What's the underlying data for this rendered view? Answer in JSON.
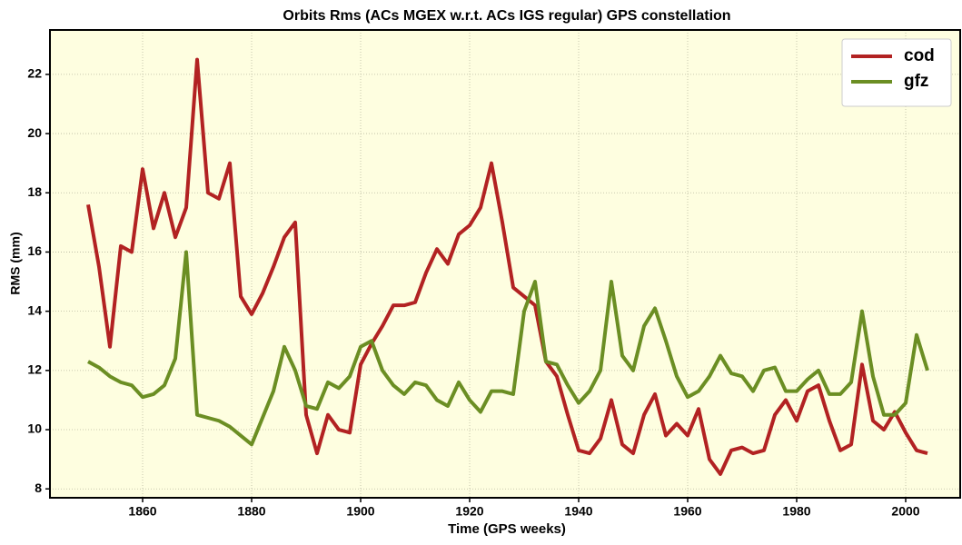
{
  "chart_data": {
    "type": "line",
    "title": "Orbits Rms (ACs MGEX w.r.t. ACs IGS regular) GPS constellation",
    "x_label": "Time (GPS weeks)",
    "y_label": "RMS (mm)",
    "x": [
      1850,
      1852,
      1854,
      1856,
      1858,
      1860,
      1862,
      1864,
      1866,
      1868,
      1870,
      1872,
      1874,
      1876,
      1878,
      1880,
      1882,
      1884,
      1886,
      1888,
      1890,
      1892,
      1894,
      1896,
      1898,
      1900,
      1902,
      1904,
      1906,
      1908,
      1910,
      1912,
      1914,
      1916,
      1918,
      1920,
      1922,
      1924,
      1926,
      1928,
      1930,
      1932,
      1934,
      1936,
      1938,
      1940,
      1942,
      1944,
      1946,
      1948,
      1950,
      1952,
      1954,
      1956,
      1958,
      1960,
      1962,
      1964,
      1966,
      1968,
      1970,
      1972,
      1974,
      1976,
      1978,
      1980,
      1982,
      1984,
      1986,
      1988,
      1990,
      1992,
      1994,
      1996,
      1998,
      2000,
      2002,
      2004
    ],
    "series": [
      {
        "name": "cod",
        "color": "#b22222",
        "values": [
          17.6,
          15.5,
          12.8,
          16.2,
          16.0,
          18.8,
          16.8,
          18.0,
          16.5,
          17.5,
          22.5,
          18.0,
          17.8,
          19.0,
          14.5,
          13.9,
          14.6,
          15.5,
          16.5,
          17.0,
          10.5,
          9.2,
          10.5,
          10.0,
          9.9,
          12.2,
          12.9,
          13.5,
          14.2,
          14.2,
          14.3,
          15.3,
          16.1,
          15.6,
          16.6,
          16.9,
          17.5,
          19.0,
          17.0,
          14.8,
          14.5,
          14.2,
          12.3,
          11.8,
          10.5,
          9.3,
          9.2,
          9.7,
          11.0,
          9.5,
          9.2,
          10.5,
          11.2,
          9.8,
          10.2,
          9.8,
          10.7,
          9.0,
          8.5,
          9.3,
          9.4,
          9.2,
          9.3,
          10.5,
          11.0,
          10.3,
          11.3,
          11.5,
          10.3,
          9.3,
          9.5,
          12.2,
          10.3,
          10.0,
          10.6,
          9.9,
          9.3,
          9.2
        ]
      },
      {
        "name": "gfz",
        "color": "#6b8e23",
        "values": [
          12.3,
          12.1,
          11.8,
          11.6,
          11.5,
          11.1,
          11.2,
          11.5,
          12.4,
          16.0,
          10.5,
          10.4,
          10.3,
          10.1,
          9.8,
          9.5,
          10.4,
          11.3,
          12.8,
          12.0,
          10.8,
          10.7,
          11.6,
          11.4,
          11.8,
          12.8,
          13.0,
          12.0,
          11.5,
          11.2,
          11.6,
          11.5,
          11.0,
          10.8,
          11.6,
          11.0,
          10.6,
          11.3,
          11.3,
          11.2,
          14.0,
          15.0,
          12.3,
          12.2,
          11.5,
          10.9,
          11.3,
          12.0,
          15.0,
          12.5,
          12.0,
          13.5,
          14.1,
          13.0,
          11.8,
          11.1,
          11.3,
          11.8,
          12.5,
          11.9,
          11.8,
          11.3,
          12.0,
          12.1,
          11.3,
          11.3,
          11.7,
          12.0,
          11.2,
          11.2,
          11.6,
          14.0,
          11.8,
          10.5,
          10.5,
          10.9,
          13.2,
          12.0
        ]
      }
    ],
    "xlim": [
      1843,
      2010
    ],
    "ylim": [
      7.7,
      23.5
    ],
    "xticks": [
      1860,
      1880,
      1900,
      1920,
      1940,
      1960,
      1980,
      2000
    ],
    "yticks": [
      8,
      10,
      12,
      14,
      16,
      18,
      20,
      22
    ],
    "grid": true,
    "legend": "upper right",
    "background": "#fefee0"
  }
}
